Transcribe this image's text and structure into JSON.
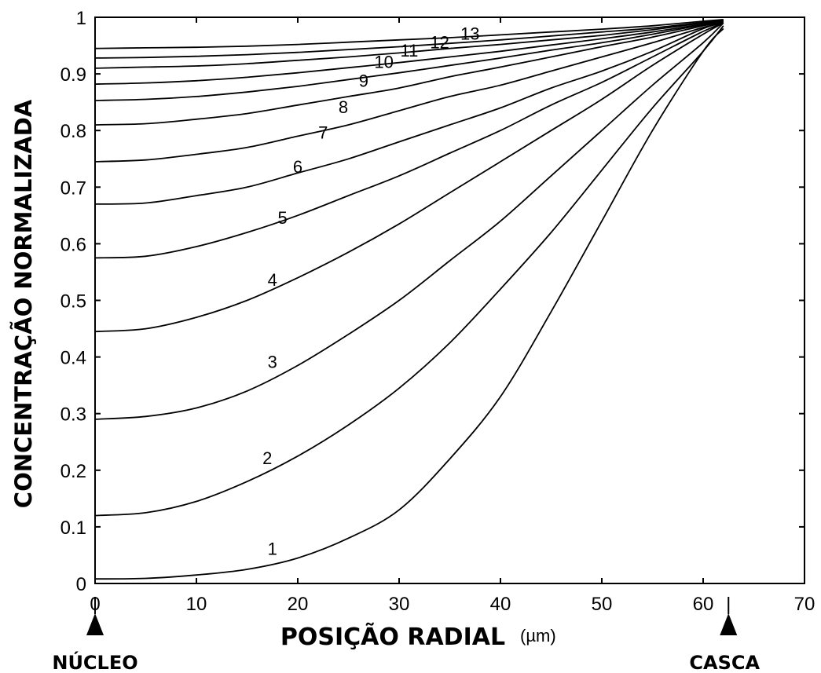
{
  "chart_data": {
    "type": "line",
    "title": "",
    "xlabel": "POSIÇÃO RADIAL",
    "xunit": "(µm)",
    "ylabel": "CONCENTRAÇÃO NORMALIZADA",
    "xlim": [
      0,
      70
    ],
    "ylim": [
      0,
      1
    ],
    "xticks": [
      "0",
      "10",
      "20",
      "30",
      "40",
      "50",
      "60",
      "70"
    ],
    "yticks": [
      "0",
      "0.1",
      "0.2",
      "0.3",
      "0.4",
      "0.5",
      "0.6",
      "0.7",
      "0.8",
      "0.9",
      "1"
    ],
    "grid": false,
    "line_color": "#000000",
    "series": [
      {
        "name": "1",
        "x": [
          0,
          5,
          10,
          15,
          20,
          25,
          30,
          35,
          40,
          45,
          50,
          55,
          60,
          62
        ],
        "y": [
          0.008,
          0.009,
          0.015,
          0.025,
          0.045,
          0.08,
          0.13,
          0.22,
          0.33,
          0.48,
          0.64,
          0.8,
          0.94,
          0.98
        ]
      },
      {
        "name": "2",
        "x": [
          0,
          5,
          10,
          15,
          20,
          25,
          30,
          35,
          40,
          45,
          50,
          55,
          60,
          62
        ],
        "y": [
          0.12,
          0.125,
          0.145,
          0.18,
          0.225,
          0.28,
          0.345,
          0.425,
          0.52,
          0.62,
          0.73,
          0.84,
          0.94,
          0.985
        ]
      },
      {
        "name": "3",
        "x": [
          0,
          5,
          10,
          15,
          20,
          25,
          30,
          35,
          40,
          45,
          50,
          55,
          60,
          62
        ],
        "y": [
          0.29,
          0.295,
          0.31,
          0.34,
          0.385,
          0.44,
          0.5,
          0.57,
          0.64,
          0.72,
          0.8,
          0.88,
          0.955,
          0.99
        ]
      },
      {
        "name": "4",
        "x": [
          0,
          5,
          10,
          15,
          20,
          25,
          30,
          35,
          40,
          45,
          50,
          55,
          60,
          62
        ],
        "y": [
          0.445,
          0.45,
          0.47,
          0.5,
          0.54,
          0.585,
          0.635,
          0.69,
          0.745,
          0.8,
          0.855,
          0.915,
          0.97,
          0.99
        ]
      },
      {
        "name": "5",
        "x": [
          0,
          5,
          10,
          15,
          20,
          25,
          30,
          35,
          40,
          45,
          50,
          55,
          60,
          62
        ],
        "y": [
          0.575,
          0.578,
          0.595,
          0.62,
          0.65,
          0.685,
          0.72,
          0.76,
          0.8,
          0.845,
          0.885,
          0.93,
          0.975,
          0.99
        ]
      },
      {
        "name": "6",
        "x": [
          0,
          5,
          10,
          15,
          20,
          25,
          30,
          35,
          40,
          45,
          50,
          55,
          60,
          62
        ],
        "y": [
          0.67,
          0.672,
          0.685,
          0.7,
          0.725,
          0.75,
          0.78,
          0.81,
          0.84,
          0.875,
          0.905,
          0.94,
          0.98,
          0.99
        ]
      },
      {
        "name": "7",
        "x": [
          0,
          5,
          10,
          15,
          20,
          25,
          30,
          35,
          40,
          45,
          50,
          55,
          60,
          62
        ],
        "y": [
          0.745,
          0.748,
          0.758,
          0.77,
          0.79,
          0.81,
          0.835,
          0.86,
          0.88,
          0.905,
          0.93,
          0.955,
          0.982,
          0.99
        ]
      },
      {
        "name": "8",
        "x": [
          0,
          5,
          10,
          15,
          20,
          25,
          30,
          35,
          40,
          45,
          50,
          55,
          60,
          62
        ],
        "y": [
          0.81,
          0.812,
          0.82,
          0.83,
          0.845,
          0.86,
          0.875,
          0.895,
          0.912,
          0.93,
          0.948,
          0.965,
          0.985,
          0.992
        ]
      },
      {
        "name": "9",
        "x": [
          0,
          5,
          10,
          15,
          20,
          25,
          30,
          35,
          40,
          45,
          50,
          55,
          60,
          62
        ],
        "y": [
          0.853,
          0.855,
          0.86,
          0.868,
          0.878,
          0.89,
          0.902,
          0.915,
          0.928,
          0.942,
          0.955,
          0.97,
          0.987,
          0.993
        ]
      },
      {
        "name": "10",
        "x": [
          0,
          5,
          10,
          15,
          20,
          25,
          30,
          35,
          40,
          45,
          50,
          55,
          60,
          62
        ],
        "y": [
          0.882,
          0.884,
          0.888,
          0.894,
          0.902,
          0.911,
          0.92,
          0.93,
          0.94,
          0.951,
          0.962,
          0.974,
          0.988,
          0.993
        ]
      },
      {
        "name": "11",
        "x": [
          0,
          5,
          10,
          15,
          20,
          25,
          30,
          35,
          40,
          45,
          50,
          55,
          60,
          62
        ],
        "y": [
          0.91,
          0.912,
          0.914,
          0.918,
          0.924,
          0.93,
          0.937,
          0.945,
          0.952,
          0.96,
          0.968,
          0.978,
          0.99,
          0.994
        ]
      },
      {
        "name": "12",
        "x": [
          0,
          5,
          10,
          15,
          20,
          25,
          30,
          35,
          40,
          45,
          50,
          55,
          60,
          62
        ],
        "y": [
          0.928,
          0.929,
          0.931,
          0.934,
          0.938,
          0.943,
          0.948,
          0.954,
          0.96,
          0.967,
          0.974,
          0.981,
          0.991,
          0.995
        ]
      },
      {
        "name": "13",
        "x": [
          0,
          5,
          10,
          15,
          20,
          25,
          30,
          35,
          40,
          45,
          50,
          55,
          60,
          62
        ],
        "y": [
          0.945,
          0.946,
          0.947,
          0.949,
          0.952,
          0.956,
          0.96,
          0.964,
          0.969,
          0.974,
          0.979,
          0.985,
          0.993,
          0.996
        ]
      }
    ],
    "curve_labels": [
      {
        "text": "1",
        "x": 17.5,
        "y": 0.045
      },
      {
        "text": "2",
        "x": 17.0,
        "y": 0.205
      },
      {
        "text": "3",
        "x": 17.5,
        "y": 0.375
      },
      {
        "text": "4",
        "x": 17.5,
        "y": 0.52
      },
      {
        "text": "5",
        "x": 18.5,
        "y": 0.63
      },
      {
        "text": "6",
        "x": 20.0,
        "y": 0.72
      },
      {
        "text": "7",
        "x": 22.5,
        "y": 0.78
      },
      {
        "text": "8",
        "x": 24.5,
        "y": 0.825
      },
      {
        "text": "9",
        "x": 26.5,
        "y": 0.872
      },
      {
        "text": "10",
        "x": 28.5,
        "y": 0.905
      },
      {
        "text": "11",
        "x": 31.0,
        "y": 0.925
      },
      {
        "text": "12",
        "x": 34.0,
        "y": 0.94
      },
      {
        "text": "13",
        "x": 37.0,
        "y": 0.955
      }
    ],
    "markers": [
      {
        "label": "NÚCLEO",
        "x": 0
      },
      {
        "label": "CASCA",
        "x": 62.5
      }
    ]
  }
}
